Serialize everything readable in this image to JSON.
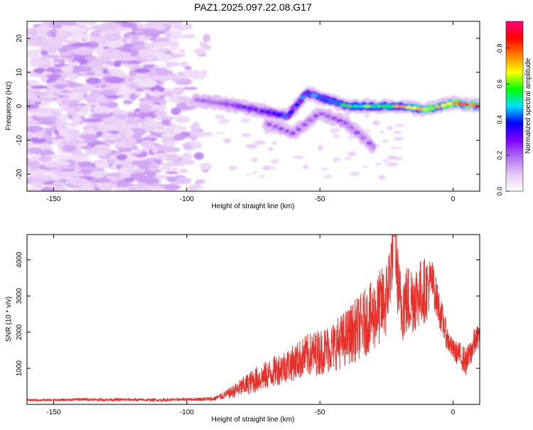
{
  "title": "PAZ1.2025.097.22.08.G17",
  "chart_data": [
    {
      "type": "heatmap",
      "xlabel": "Height of straight line (km)",
      "ylabel": "Frequency (Hz)",
      "xlim": [
        -160,
        10
      ],
      "ylim": [
        -25,
        25
      ],
      "x_ticks": [
        -150,
        -100,
        -50,
        0
      ],
      "y_ticks": [
        -20,
        -10,
        0,
        10,
        20
      ],
      "grid": false,
      "colorbar": {
        "label": "Normalized spectral amplitude",
        "range": [
          0,
          0.95
        ],
        "ticks": [
          0.0,
          0.2,
          0.4,
          0.6,
          0.8
        ],
        "colormap": [
          "#ffffff",
          "#e6c8f5",
          "#b070f0",
          "#8000ff",
          "#0000ff",
          "#00e0ff",
          "#00ff00",
          "#ffff00",
          "#ff8000",
          "#ff0000",
          "#ff0080"
        ]
      },
      "features": [
        {
          "name": "scattered-noise",
          "x": [
            -160,
            -90
          ],
          "y": [
            -25,
            25
          ],
          "amplitude": 0.1
        },
        {
          "name": "main-track",
          "points": [
            [
              -97,
              2
            ],
            [
              -80,
              0
            ],
            [
              -62,
              -3
            ],
            [
              -55,
              4
            ],
            [
              -40,
              0
            ],
            [
              -30,
              0
            ],
            [
              -20,
              0
            ],
            [
              -10,
              -1
            ],
            [
              0,
              1
            ],
            [
              10,
              0
            ]
          ],
          "amplitude_start": 0.2,
          "amplitude_end": 0.95
        },
        {
          "name": "lower-branch",
          "points": [
            [
              -70,
              -5
            ],
            [
              -60,
              -8
            ],
            [
              -50,
              -2
            ],
            [
              -40,
              -5
            ],
            [
              -30,
              -12
            ]
          ],
          "amplitude": 0.25
        }
      ]
    },
    {
      "type": "line",
      "xlabel": "Height of straight line (km)",
      "ylabel": "SNR (10 * v/v)",
      "xlim": [
        -160,
        10
      ],
      "ylim": [
        0,
        4700
      ],
      "x_ticks": [
        -150,
        -100,
        -50,
        0
      ],
      "y_ticks": [
        1000,
        2000,
        3000,
        4000
      ],
      "grid": false,
      "series": [
        {
          "color": "#e8302b",
          "x": [
            -160,
            -150,
            -140,
            -130,
            -120,
            -110,
            -100,
            -90,
            -85,
            -80,
            -75,
            -70,
            -65,
            -60,
            -55,
            -50,
            -45,
            -40,
            -35,
            -30,
            -25,
            -22,
            -20,
            -15,
            -10,
            -8,
            -5,
            -2,
            0,
            3,
            5,
            8,
            10
          ],
          "y": [
            120,
            120,
            140,
            130,
            130,
            120,
            140,
            150,
            280,
            450,
            650,
            800,
            1000,
            1150,
            1350,
            1450,
            1600,
            1850,
            2150,
            2450,
            2900,
            4600,
            2750,
            2950,
            3200,
            3450,
            2600,
            1800,
            1500,
            1350,
            1150,
            1700,
            1950
          ],
          "noise_spread": [
            30,
            30,
            40,
            40,
            40,
            40,
            40,
            60,
            120,
            250,
            350,
            400,
            450,
            500,
            600,
            650,
            700,
            800,
            900,
            1000,
            1100,
            900,
            1100,
            1000,
            900,
            600,
            500,
            350,
            300,
            350,
            400,
            400,
            300
          ]
        }
      ]
    }
  ]
}
